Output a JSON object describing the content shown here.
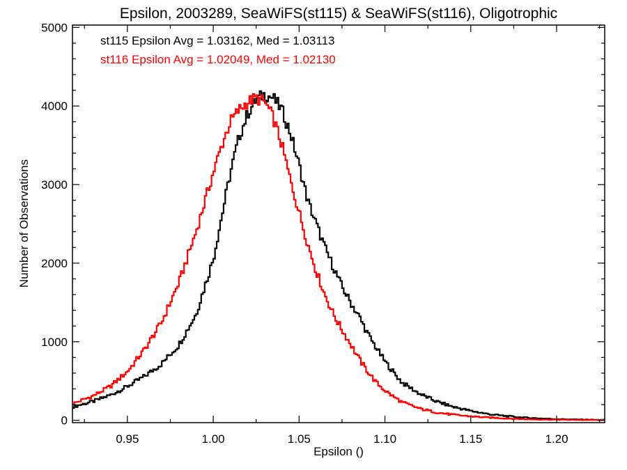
{
  "chart_data": {
    "type": "line",
    "style": "step-histogram",
    "title": "Epsilon, 2003289, SeaWiFS(st115) & SeaWiFS(st116), Oligotrophic",
    "xlabel": "Epsilon ()",
    "ylabel": "Number of Observations",
    "xlim": [
      0.918,
      1.228
    ],
    "ylim": [
      -30,
      5030
    ],
    "x_ticks": [
      0.95,
      1.0,
      1.05,
      1.1,
      1.15,
      1.2
    ],
    "x_tick_labels": [
      "0.95",
      "1.00",
      "1.05",
      "1.10",
      "1.15",
      "1.20"
    ],
    "y_ticks": [
      0,
      1000,
      2000,
      3000,
      4000,
      5000
    ],
    "y_tick_labels": [
      "0",
      "1000",
      "2000",
      "3000",
      "4000",
      "5000"
    ],
    "grid": false,
    "annotations": [
      {
        "text": "st115 Epsilon Avg = 1.03162, Med = 1.03113",
        "color": "#000000"
      },
      {
        "text": "st116 Epsilon Avg = 1.02049, Med = 1.02130",
        "color": "#ff0000"
      }
    ],
    "series": [
      {
        "color": "#000000",
        "x": [
          0.918,
          0.93,
          0.94,
          0.95,
          0.96,
          0.97,
          0.98,
          0.99,
          1.0,
          1.005,
          1.01,
          1.015,
          1.02,
          1.025,
          1.03,
          1.035,
          1.04,
          1.045,
          1.05,
          1.055,
          1.06,
          1.065,
          1.07,
          1.075,
          1.08,
          1.085,
          1.09,
          1.095,
          1.1,
          1.105,
          1.11,
          1.12,
          1.13,
          1.14,
          1.15,
          1.16,
          1.17,
          1.18,
          1.19,
          1.2,
          1.21,
          1.228
        ],
        "y": [
          170,
          240,
          320,
          430,
          560,
          720,
          960,
          1350,
          2050,
          2600,
          3150,
          3600,
          3900,
          4080,
          4150,
          4100,
          3950,
          3650,
          3250,
          2800,
          2500,
          2200,
          1950,
          1700,
          1500,
          1320,
          1100,
          920,
          750,
          610,
          480,
          340,
          240,
          170,
          120,
          80,
          55,
          35,
          25,
          15,
          10,
          5
        ]
      },
      {
        "color": "#ff0000",
        "x": [
          0.918,
          0.93,
          0.94,
          0.95,
          0.96,
          0.97,
          0.98,
          0.99,
          1.0,
          1.005,
          1.01,
          1.015,
          1.02,
          1.025,
          1.03,
          1.035,
          1.04,
          1.045,
          1.05,
          1.055,
          1.06,
          1.065,
          1.07,
          1.075,
          1.08,
          1.085,
          1.09,
          1.095,
          1.1,
          1.105,
          1.11,
          1.12,
          1.13,
          1.14,
          1.15,
          1.16,
          1.17,
          1.18,
          1.19,
          1.2,
          1.21,
          1.228
        ],
        "y": [
          210,
          310,
          430,
          620,
          900,
          1250,
          1750,
          2400,
          3150,
          3500,
          3800,
          3950,
          4050,
          4100,
          4050,
          3850,
          3500,
          3050,
          2650,
          2250,
          1900,
          1600,
          1350,
          1150,
          970,
          780,
          620,
          480,
          380,
          300,
          230,
          150,
          100,
          70,
          50,
          35,
          25,
          15,
          10,
          8,
          5,
          3
        ]
      }
    ]
  }
}
